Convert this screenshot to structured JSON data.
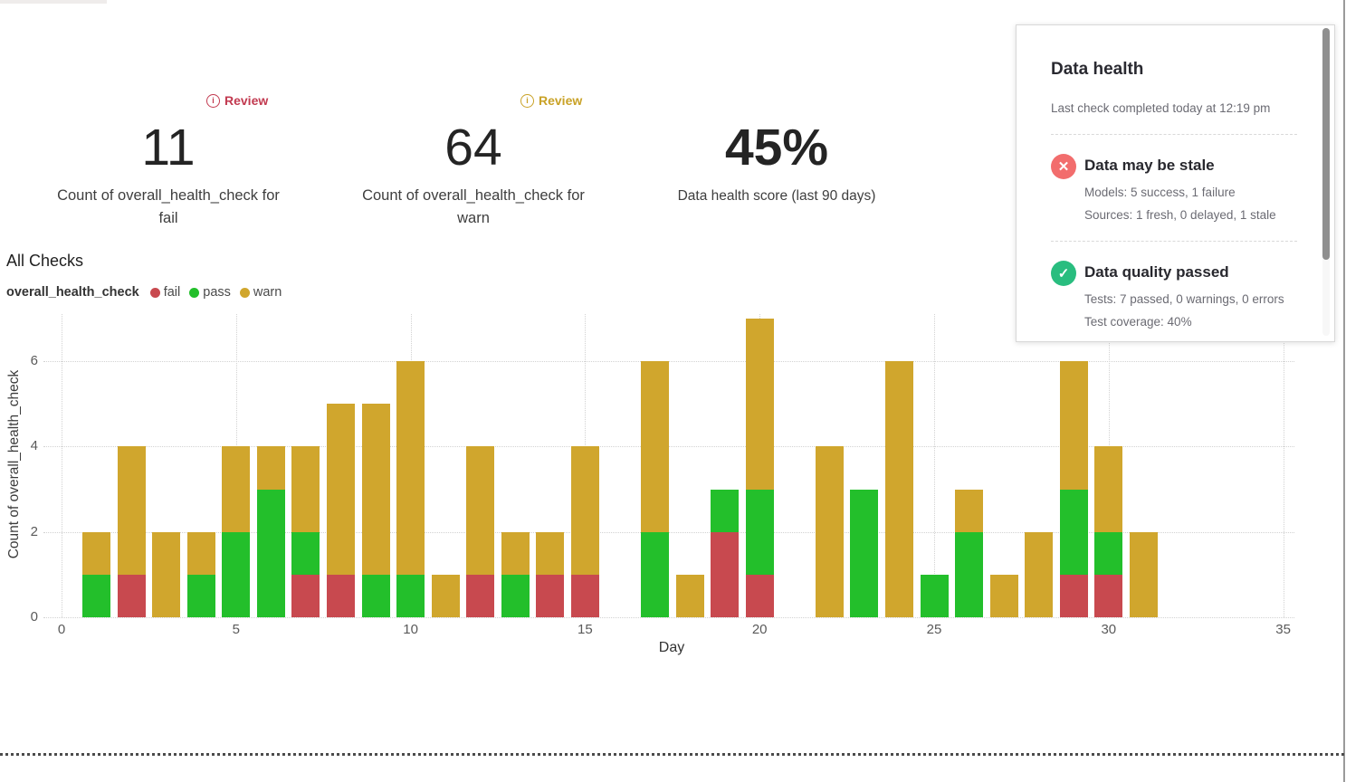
{
  "kpi": {
    "fail": {
      "badge": "Review",
      "value": "11",
      "label": "Count of overall_health_check for fail"
    },
    "warn": {
      "badge": "Review",
      "value": "64",
      "label": "Count of overall_health_check for warn"
    },
    "score": {
      "value": "45%",
      "label": "Data health score (last 90 days)"
    }
  },
  "section": {
    "title": "All Checks"
  },
  "panel": {
    "title": "Data health",
    "subtitle": "Last check completed today at 12:19 pm",
    "items": [
      {
        "icon": "x-circle-icon",
        "title": "Data may be stale",
        "lines": [
          "Models: 5 success, 1 failure",
          "Sources: 1 fresh, 0 delayed, 1 stale"
        ]
      },
      {
        "icon": "check-circle-icon",
        "title": "Data quality passed",
        "lines": [
          "Tests: 7 passed, 0 warnings, 0 errors",
          "Test coverage: 40%"
        ]
      }
    ]
  },
  "chart_data": {
    "type": "bar",
    "stacked": true,
    "title": "All Checks",
    "legend_title": "overall_health_check",
    "legend_position": "top-left",
    "grid": "dotted",
    "xlabel": "Day",
    "ylabel": "Count of overall_health_check",
    "x_days": [
      1,
      2,
      3,
      4,
      5,
      6,
      7,
      8,
      9,
      10,
      11,
      12,
      13,
      14,
      15,
      16,
      17,
      18,
      19,
      20,
      21,
      22,
      23,
      24,
      25,
      26,
      27,
      28,
      29,
      30,
      31
    ],
    "series": [
      {
        "name": "fail",
        "color": "#c8494f",
        "values": [
          0,
          1,
          0,
          0,
          0,
          0,
          1,
          1,
          0,
          0,
          0,
          1,
          0,
          1,
          1,
          0,
          0,
          0,
          2,
          1,
          0,
          0,
          0,
          0,
          0,
          0,
          0,
          0,
          1,
          1,
          0
        ]
      },
      {
        "name": "pass",
        "color": "#23bf2b",
        "values": [
          1,
          0,
          0,
          1,
          2,
          3,
          1,
          0,
          1,
          1,
          0,
          0,
          1,
          0,
          0,
          0,
          2,
          0,
          1,
          2,
          0,
          0,
          3,
          0,
          1,
          2,
          0,
          0,
          2,
          1,
          0
        ]
      },
      {
        "name": "warn",
        "color": "#d0a62d",
        "values": [
          1,
          3,
          2,
          1,
          2,
          1,
          2,
          4,
          4,
          5,
          1,
          3,
          1,
          1,
          3,
          0,
          4,
          1,
          0,
          4,
          0,
          4,
          0,
          6,
          0,
          1,
          1,
          2,
          3,
          2,
          2
        ]
      }
    ],
    "xticks": [
      0,
      5,
      10,
      15,
      20,
      25,
      30,
      35
    ],
    "yticks": [
      0,
      2,
      4,
      6
    ],
    "xlim": [
      0,
      35
    ],
    "ylim": [
      0,
      7.1
    ]
  },
  "colors": {
    "fail": "#c8494f",
    "pass": "#23bf2b",
    "warn": "#d0a62d",
    "badge_fail": "#c23a50",
    "badge_warn": "#c9a227",
    "icon_fail_bg": "#f26d6d",
    "icon_pass_bg": "#29bd7f"
  }
}
